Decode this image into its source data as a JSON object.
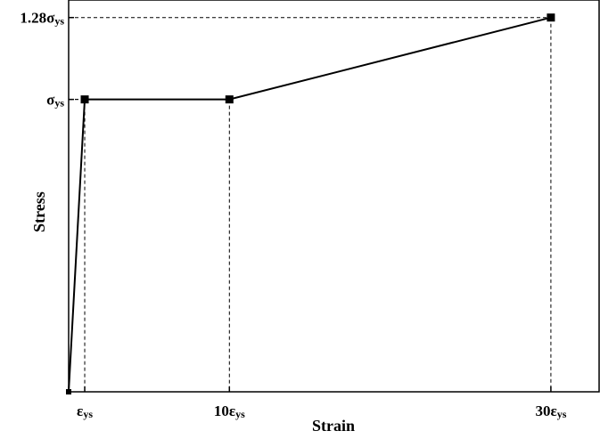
{
  "chart_data": {
    "type": "line",
    "xlabel": "Strain",
    "ylabel": "Stress",
    "xlim": [
      0,
      33
    ],
    "ylim": [
      0,
      1.34
    ],
    "grid": false,
    "legend": "none",
    "series_color": "#000000",
    "series": [
      {
        "x": [
          0,
          1,
          10,
          30
        ],
        "y": [
          0,
          1,
          1,
          1.28
        ]
      }
    ],
    "guide_lines": {
      "style": "dashed",
      "color": "#000000"
    },
    "x_ticks": [
      {
        "value": 1,
        "main": "ε",
        "sub": "ys"
      },
      {
        "value": 10,
        "main": "10ε",
        "sub": "ys"
      },
      {
        "value": 30,
        "main": "30ε",
        "sub": "ys"
      }
    ],
    "y_ticks": [
      {
        "value": 1,
        "main": "σ",
        "sub": "ys"
      },
      {
        "value": 1.28,
        "main": "1.28σ",
        "sub": "ys"
      }
    ]
  }
}
